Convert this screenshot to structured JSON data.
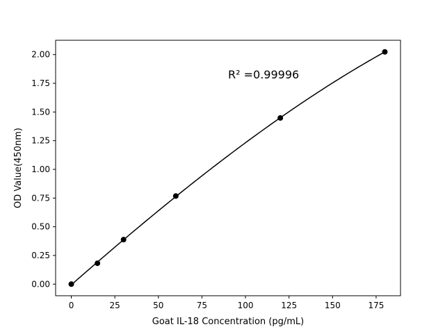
{
  "chart_data": {
    "type": "line",
    "title": "",
    "xlabel": "Goat IL-18 Concentration (pg/mL)",
    "ylabel": "OD Value(450nm)",
    "xlim": [
      -9,
      189
    ],
    "ylim": [
      -0.101,
      2.125
    ],
    "xticks": [
      0,
      25,
      50,
      75,
      100,
      125,
      150,
      175
    ],
    "xtick_labels": [
      "0",
      "25",
      "50",
      "75",
      "100",
      "125",
      "150",
      "175"
    ],
    "yticks": [
      0,
      0.25,
      0.5,
      0.75,
      1.0,
      1.25,
      1.5,
      1.75,
      2.0
    ],
    "ytick_labels": [
      "0.00",
      "0.25",
      "0.50",
      "0.75",
      "1.00",
      "1.25",
      "1.50",
      "1.75",
      "2.00"
    ],
    "grid": false,
    "series": [
      {
        "x": [
          0,
          15,
          30,
          60,
          120,
          180
        ],
        "y": [
          0.0,
          0.182,
          0.388,
          0.768,
          1.448,
          2.024
        ],
        "color": "#000000",
        "marker": "circle",
        "fit_curve": true
      }
    ],
    "annotations": [
      {
        "text": "R² =0.99996",
        "x": 90,
        "y": 1.83
      }
    ]
  }
}
